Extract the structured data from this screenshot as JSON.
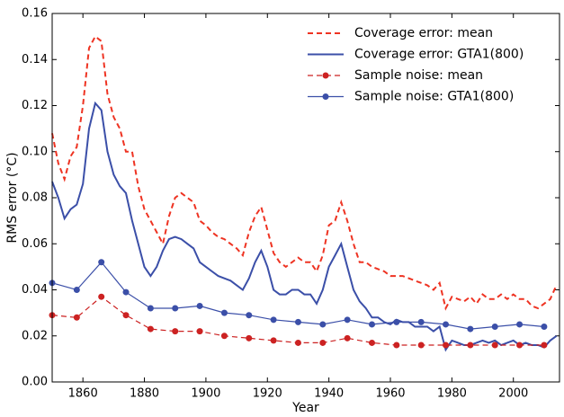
{
  "chart_data": {
    "type": "line",
    "xlabel": "Year",
    "ylabel": "RMS error (°C)",
    "xlim": [
      1850,
      2015
    ],
    "ylim": [
      0,
      0.16
    ],
    "xticks": [
      1860,
      1880,
      1900,
      1920,
      1940,
      1960,
      1980,
      2000
    ],
    "yticks": [
      {
        "value": 0,
        "label": "0.00"
      },
      {
        "value": 0.02,
        "label": "0.02"
      },
      {
        "value": 0.04,
        "label": "0.04"
      },
      {
        "value": 0.06,
        "label": "0.06"
      },
      {
        "value": 0.08,
        "label": "0.08"
      },
      {
        "value": 0.1,
        "label": "0.10"
      },
      {
        "value": 0.12,
        "label": "0.12"
      },
      {
        "value": 0.14,
        "label": "0.14"
      },
      {
        "value": 0.16,
        "label": "0.16"
      }
    ],
    "legend": "upper right",
    "series": [
      {
        "name": "Coverage error: mean",
        "color": "#ee3322",
        "linestyle": "dashed",
        "marker": "none",
        "x": [
          1850,
          1852,
          1854,
          1856,
          1858,
          1860,
          1862,
          1864,
          1866,
          1868,
          1870,
          1872,
          1874,
          1876,
          1878,
          1880,
          1882,
          1884,
          1886,
          1888,
          1890,
          1892,
          1894,
          1896,
          1898,
          1900,
          1902,
          1904,
          1906,
          1908,
          1910,
          1912,
          1914,
          1916,
          1918,
          1920,
          1922,
          1924,
          1926,
          1928,
          1930,
          1932,
          1934,
          1936,
          1938,
          1940,
          1942,
          1944,
          1946,
          1948,
          1950,
          1952,
          1954,
          1956,
          1958,
          1960,
          1962,
          1964,
          1966,
          1968,
          1970,
          1972,
          1974,
          1976,
          1978,
          1980,
          1982,
          1984,
          1986,
          1988,
          1990,
          1992,
          1994,
          1996,
          1998,
          2000,
          2002,
          2004,
          2006,
          2008,
          2010,
          2012,
          2014
        ],
        "values": [
          0.108,
          0.095,
          0.088,
          0.098,
          0.102,
          0.12,
          0.145,
          0.15,
          0.148,
          0.125,
          0.115,
          0.11,
          0.1,
          0.1,
          0.085,
          0.075,
          0.07,
          0.065,
          0.06,
          0.072,
          0.08,
          0.082,
          0.08,
          0.078,
          0.07,
          0.068,
          0.065,
          0.063,
          0.062,
          0.06,
          0.058,
          0.055,
          0.065,
          0.072,
          0.076,
          0.066,
          0.056,
          0.052,
          0.05,
          0.052,
          0.054,
          0.052,
          0.052,
          0.048,
          0.055,
          0.068,
          0.07,
          0.078,
          0.07,
          0.06,
          0.052,
          0.052,
          0.05,
          0.049,
          0.048,
          0.046,
          0.046,
          0.046,
          0.045,
          0.044,
          0.043,
          0.042,
          0.04,
          0.043,
          0.032,
          0.037,
          0.036,
          0.035,
          0.037,
          0.034,
          0.038,
          0.036,
          0.036,
          0.038,
          0.036,
          0.038,
          0.036,
          0.036,
          0.033,
          0.032,
          0.034,
          0.036,
          0.042
        ]
      },
      {
        "name": "Coverage error: GTA1(800)",
        "color": "#3b4fa8",
        "linestyle": "solid",
        "marker": "none",
        "x": [
          1850,
          1852,
          1854,
          1856,
          1858,
          1860,
          1862,
          1864,
          1866,
          1868,
          1870,
          1872,
          1874,
          1876,
          1878,
          1880,
          1882,
          1884,
          1886,
          1888,
          1890,
          1892,
          1894,
          1896,
          1898,
          1900,
          1902,
          1904,
          1906,
          1908,
          1910,
          1912,
          1914,
          1916,
          1918,
          1920,
          1922,
          1924,
          1926,
          1928,
          1930,
          1932,
          1934,
          1936,
          1938,
          1940,
          1942,
          1944,
          1946,
          1948,
          1950,
          1952,
          1954,
          1956,
          1958,
          1960,
          1962,
          1964,
          1966,
          1968,
          1970,
          1972,
          1974,
          1976,
          1978,
          1980,
          1982,
          1984,
          1986,
          1988,
          1990,
          1992,
          1994,
          1996,
          1998,
          2000,
          2002,
          2004,
          2006,
          2008,
          2010,
          2012,
          2014
        ],
        "values": [
          0.087,
          0.08,
          0.071,
          0.075,
          0.077,
          0.086,
          0.11,
          0.121,
          0.118,
          0.1,
          0.09,
          0.085,
          0.082,
          0.07,
          0.06,
          0.05,
          0.046,
          0.05,
          0.057,
          0.062,
          0.063,
          0.062,
          0.06,
          0.058,
          0.052,
          0.05,
          0.048,
          0.046,
          0.045,
          0.044,
          0.042,
          0.04,
          0.045,
          0.052,
          0.057,
          0.05,
          0.04,
          0.038,
          0.038,
          0.04,
          0.04,
          0.038,
          0.038,
          0.034,
          0.04,
          0.05,
          0.055,
          0.06,
          0.05,
          0.04,
          0.035,
          0.032,
          0.028,
          0.028,
          0.026,
          0.025,
          0.027,
          0.026,
          0.026,
          0.024,
          0.024,
          0.024,
          0.022,
          0.024,
          0.014,
          0.018,
          0.017,
          0.016,
          0.016,
          0.017,
          0.018,
          0.017,
          0.018,
          0.016,
          0.017,
          0.018,
          0.016,
          0.017,
          0.016,
          0.016,
          0.015,
          0.018,
          0.02
        ]
      },
      {
        "name": "Sample noise: mean",
        "color": "#cc2222",
        "linestyle": "dashed",
        "marker": "o",
        "x": [
          1850,
          1858,
          1866,
          1874,
          1882,
          1890,
          1898,
          1906,
          1914,
          1922,
          1930,
          1938,
          1946,
          1954,
          1962,
          1970,
          1978,
          1986,
          1994,
          2002,
          2010
        ],
        "values": [
          0.029,
          0.028,
          0.037,
          0.029,
          0.023,
          0.022,
          0.022,
          0.02,
          0.019,
          0.018,
          0.017,
          0.017,
          0.019,
          0.017,
          0.016,
          0.016,
          0.016,
          0.016,
          0.016,
          0.016,
          0.016
        ]
      },
      {
        "name": "Sample noise: GTA1(800)",
        "color": "#3b4fa8",
        "linestyle": "solid",
        "marker": "o",
        "x": [
          1850,
          1858,
          1866,
          1874,
          1882,
          1890,
          1898,
          1906,
          1914,
          1922,
          1930,
          1938,
          1946,
          1954,
          1962,
          1970,
          1978,
          1986,
          1994,
          2002,
          2010
        ],
        "values": [
          0.043,
          0.04,
          0.052,
          0.039,
          0.032,
          0.032,
          0.033,
          0.03,
          0.029,
          0.027,
          0.026,
          0.025,
          0.027,
          0.025,
          0.026,
          0.026,
          0.025,
          0.023,
          0.024,
          0.025,
          0.024
        ]
      }
    ]
  }
}
